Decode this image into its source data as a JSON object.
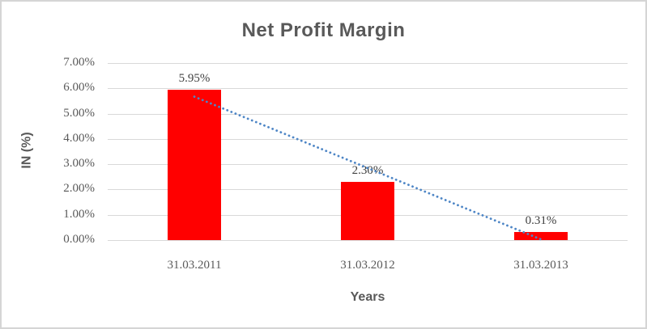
{
  "chart": {
    "colors": {
      "bar": "#ff0000",
      "trendline": "#4e86c6",
      "gridline": "#d9d9d9",
      "title_text": "#595959",
      "axis_text": "#595959",
      "data_label_text": "#404040",
      "border": "#d5d5d5"
    }
  },
  "chart_data": {
    "type": "bar",
    "title": "Net Profit Margin",
    "xlabel": "Years",
    "ylabel": "IN (%)",
    "categories": [
      "31.03.2011",
      "31.03.2012",
      "31.03.2013"
    ],
    "values": [
      5.95,
      2.3,
      0.31
    ],
    "data_labels": [
      "5.95%",
      "2.30%",
      "0.31%"
    ],
    "ytick_labels": [
      "7.00%",
      "6.00%",
      "5.00%",
      "4.00%",
      "3.00%",
      "2.00%",
      "1.00%",
      "0.00%"
    ],
    "ylim": [
      0,
      7
    ],
    "grid": true,
    "legend": "none",
    "trendline": {
      "style": "dotted",
      "shape": "linear",
      "start_value": 5.67,
      "end_value": 0.03
    }
  }
}
